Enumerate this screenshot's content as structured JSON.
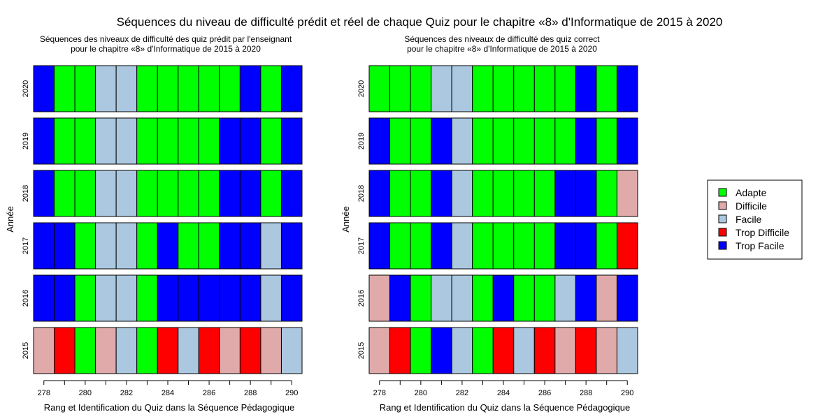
{
  "title": "Séquences du niveau de difficulté prédit et réel de chaque Quiz pour le chapitre «8» d'Informatique de 2015 à 2020",
  "colors": {
    "Adapte": "#00ff00",
    "Difficile": "#e0aaaa",
    "Facile": "#abc8e0",
    "Trop Difficile": "#ff0000",
    "Trop Facile": "#0000ff"
  },
  "legend": [
    "Adapte",
    "Difficile",
    "Facile",
    "Trop Difficile",
    "Trop Facile"
  ],
  "chart_data": [
    {
      "type": "heatmap",
      "title_lines": [
        "Séquences des niveaux de difficulté des quiz prédit par l'enseignant",
        "pour le chapitre «8» d'Informatique de 2015 à 2020"
      ],
      "xlabel": "Rang et Identification du Quiz dans la Séquence Pédagogique",
      "ylabel": "Année",
      "x": [
        278,
        279,
        280,
        281,
        282,
        283,
        284,
        285,
        286,
        287,
        288,
        289,
        290
      ],
      "x_ticks": [
        278,
        280,
        282,
        284,
        286,
        288,
        290
      ],
      "rows": [
        {
          "year": "2020",
          "values": [
            "Trop Facile",
            "Adapte",
            "Adapte",
            "Facile",
            "Facile",
            "Adapte",
            "Adapte",
            "Adapte",
            "Adapte",
            "Adapte",
            "Trop Facile",
            "Adapte",
            "Trop Facile"
          ]
        },
        {
          "year": "2019",
          "values": [
            "Trop Facile",
            "Adapte",
            "Adapte",
            "Facile",
            "Facile",
            "Adapte",
            "Adapte",
            "Adapte",
            "Adapte",
            "Trop Facile",
            "Trop Facile",
            "Adapte",
            "Trop Facile"
          ]
        },
        {
          "year": "2018",
          "values": [
            "Trop Facile",
            "Adapte",
            "Adapte",
            "Facile",
            "Facile",
            "Adapte",
            "Adapte",
            "Adapte",
            "Adapte",
            "Trop Facile",
            "Trop Facile",
            "Adapte",
            "Trop Facile"
          ]
        },
        {
          "year": "2017",
          "values": [
            "Trop Facile",
            "Trop Facile",
            "Adapte",
            "Facile",
            "Facile",
            "Adapte",
            "Trop Facile",
            "Adapte",
            "Adapte",
            "Trop Facile",
            "Trop Facile",
            "Facile",
            "Trop Facile"
          ]
        },
        {
          "year": "2016",
          "values": [
            "Trop Facile",
            "Trop Facile",
            "Adapte",
            "Facile",
            "Facile",
            "Adapte",
            "Trop Facile",
            "Trop Facile",
            "Trop Facile",
            "Trop Facile",
            "Trop Facile",
            "Facile",
            "Trop Facile"
          ]
        },
        {
          "year": "2015",
          "values": [
            "Difficile",
            "Trop Difficile",
            "Adapte",
            "Difficile",
            "Facile",
            "Adapte",
            "Trop Difficile",
            "Facile",
            "Trop Difficile",
            "Difficile",
            "Trop Difficile",
            "Difficile",
            "Facile"
          ]
        }
      ]
    },
    {
      "type": "heatmap",
      "title_lines": [
        "Séquences des niveaux de difficulté des quiz correct",
        "pour le chapitre «8» d'Informatique de 2015 à 2020"
      ],
      "xlabel": "Rang et Identification du Quiz dans la Séquence Pédagogique",
      "ylabel": "Année",
      "x": [
        278,
        279,
        280,
        281,
        282,
        283,
        284,
        285,
        286,
        287,
        288,
        289,
        290
      ],
      "x_ticks": [
        278,
        280,
        282,
        284,
        286,
        288,
        290
      ],
      "rows": [
        {
          "year": "2020",
          "values": [
            "Adapte",
            "Adapte",
            "Adapte",
            "Facile",
            "Facile",
            "Adapte",
            "Adapte",
            "Adapte",
            "Adapte",
            "Adapte",
            "Trop Facile",
            "Adapte",
            "Trop Facile"
          ]
        },
        {
          "year": "2019",
          "values": [
            "Trop Facile",
            "Adapte",
            "Adapte",
            "Trop Facile",
            "Facile",
            "Adapte",
            "Adapte",
            "Adapte",
            "Adapte",
            "Adapte",
            "Trop Facile",
            "Adapte",
            "Trop Facile"
          ]
        },
        {
          "year": "2018",
          "values": [
            "Trop Facile",
            "Adapte",
            "Adapte",
            "Trop Facile",
            "Facile",
            "Adapte",
            "Adapte",
            "Adapte",
            "Adapte",
            "Trop Facile",
            "Trop Facile",
            "Adapte",
            "Difficile"
          ]
        },
        {
          "year": "2017",
          "values": [
            "Trop Facile",
            "Adapte",
            "Adapte",
            "Trop Facile",
            "Facile",
            "Adapte",
            "Adapte",
            "Adapte",
            "Adapte",
            "Trop Facile",
            "Trop Facile",
            "Adapte",
            "Trop Difficile"
          ]
        },
        {
          "year": "2016",
          "values": [
            "Difficile",
            "Trop Facile",
            "Adapte",
            "Facile",
            "Facile",
            "Adapte",
            "Trop Facile",
            "Adapte",
            "Adapte",
            "Facile",
            "Trop Facile",
            "Difficile",
            "Trop Facile"
          ]
        },
        {
          "year": "2015",
          "values": [
            "Difficile",
            "Trop Difficile",
            "Adapte",
            "Trop Facile",
            "Facile",
            "Adapte",
            "Trop Difficile",
            "Facile",
            "Trop Difficile",
            "Difficile",
            "Trop Difficile",
            "Difficile",
            "Facile"
          ]
        }
      ]
    }
  ]
}
